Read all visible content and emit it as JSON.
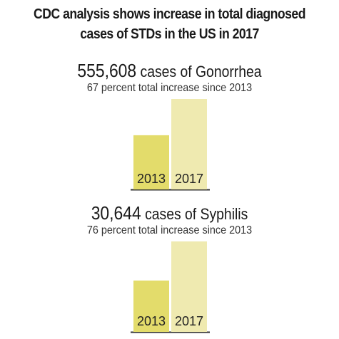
{
  "title_line1": "CDC analysis shows increase in total diagnosed",
  "title_line2": "cases of STDs in the US in 2017",
  "colors": {
    "bar_2013": "#e3dc6b",
    "bar_2017": "#efeab0",
    "baseline": "#333333"
  },
  "chart_data": [
    {
      "type": "bar",
      "headline_number": "555,608",
      "headline_text": "cases of Gonorrhea",
      "subline": "67 percent total increase since 2013",
      "categories": [
        "2013",
        "2017"
      ],
      "values": [
        333000,
        555608
      ],
      "ylim": [
        0,
        555608
      ]
    },
    {
      "type": "bar",
      "headline_number": "30,644",
      "headline_text": "cases of Syphilis",
      "subline": "76 percent total increase since 2013",
      "categories": [
        "2013",
        "2017"
      ],
      "values": [
        17400,
        30644
      ],
      "ylim": [
        0,
        30644
      ]
    }
  ]
}
